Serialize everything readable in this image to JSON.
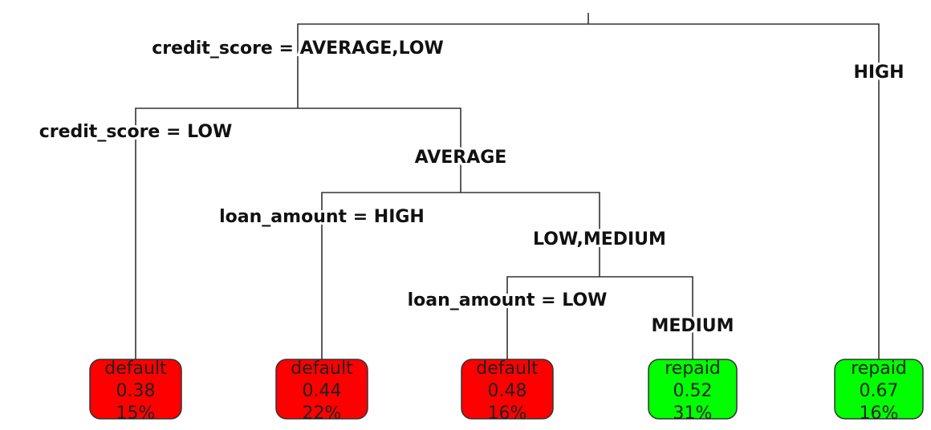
{
  "tree": {
    "split_labels": {
      "root_left": "credit_score = AVERAGE,LOW",
      "root_right": "HIGH",
      "n2_left": "credit_score = LOW",
      "n2_right": "AVERAGE",
      "n3_left": "loan_amount = HIGH",
      "n3_right": "LOW,MEDIUM",
      "n4_left": "loan_amount = LOW",
      "n4_right": "MEDIUM"
    },
    "leaves": [
      {
        "class": "default",
        "prob": "0.38",
        "pct": "15%",
        "color": "#ff0000"
      },
      {
        "class": "default",
        "prob": "0.44",
        "pct": "22%",
        "color": "#ff0000"
      },
      {
        "class": "default",
        "prob": "0.48",
        "pct": "16%",
        "color": "#ff0000"
      },
      {
        "class": "repaid",
        "prob": "0.52",
        "pct": "31%",
        "color": "#00ff00"
      },
      {
        "class": "repaid",
        "prob": "0.67",
        "pct": "16%",
        "color": "#00ff00"
      }
    ]
  }
}
